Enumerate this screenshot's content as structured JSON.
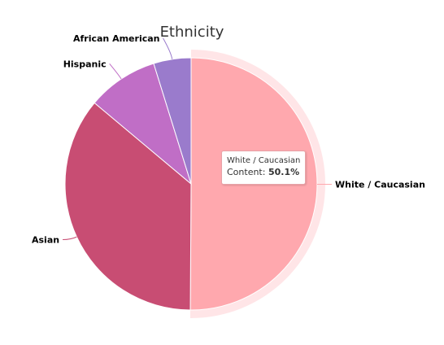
{
  "chart_data": {
    "type": "pie",
    "title": "Ethnicity",
    "series": [
      {
        "name": "Content",
        "categories": [
          "White / Caucasian",
          "Asian",
          "Hispanic",
          "African American"
        ],
        "values": [
          50.1,
          36.0,
          9.1,
          4.8
        ],
        "colors": [
          "#ffa8ae",
          "#c84d73",
          "#c06ec6",
          "#9a7bcc"
        ]
      }
    ],
    "hovered_slice": "White / Caucasian",
    "legend": "none"
  },
  "tooltip": {
    "name": "White / Caucasian",
    "series_label": "Content:",
    "value_text": "50.1%"
  }
}
